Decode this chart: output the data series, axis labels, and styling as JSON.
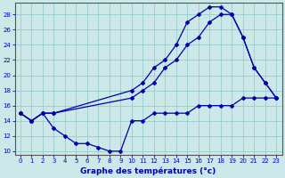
{
  "xlabel": "Graphe des températures (°c)",
  "xlim": [
    -0.5,
    23.5
  ],
  "ylim": [
    9.5,
    29.5
  ],
  "yticks": [
    10,
    12,
    14,
    16,
    18,
    20,
    22,
    24,
    26,
    28
  ],
  "xticks": [
    0,
    1,
    2,
    3,
    4,
    5,
    6,
    7,
    8,
    9,
    10,
    11,
    12,
    13,
    14,
    15,
    16,
    17,
    18,
    19,
    20,
    21,
    22,
    23
  ],
  "background_color": "#cce8e8",
  "grid_color": "#99cccc",
  "line_color": "#0000aa",
  "curve1_x": [
    0,
    1,
    2,
    3,
    10,
    11,
    12,
    13,
    14,
    15,
    16,
    17,
    18,
    19,
    20,
    21,
    22,
    23
  ],
  "curve1_y": [
    15,
    14,
    15,
    15,
    18,
    19,
    21,
    22,
    24,
    27,
    28,
    29,
    29,
    28,
    25,
    21,
    19,
    17
  ],
  "curve2_x": [
    0,
    1,
    2,
    3,
    10,
    11,
    12,
    13,
    14,
    15,
    16,
    17,
    18,
    19,
    20,
    21,
    22,
    23
  ],
  "curve2_y": [
    15,
    14,
    15,
    15,
    17,
    18,
    19,
    21,
    22,
    24,
    25,
    27,
    28,
    28,
    25,
    21,
    19,
    17
  ],
  "curve3_x": [
    0,
    1,
    2,
    3,
    4,
    5,
    6,
    7,
    8,
    9,
    10,
    11,
    12,
    13,
    14,
    15,
    16,
    17,
    18,
    19,
    20,
    21,
    22,
    23
  ],
  "curve3_y": [
    15,
    14,
    15,
    13,
    12,
    11,
    11,
    10.5,
    10,
    10,
    14,
    14,
    15,
    15,
    15,
    15,
    16,
    16,
    16,
    16,
    17,
    17,
    17,
    17
  ]
}
